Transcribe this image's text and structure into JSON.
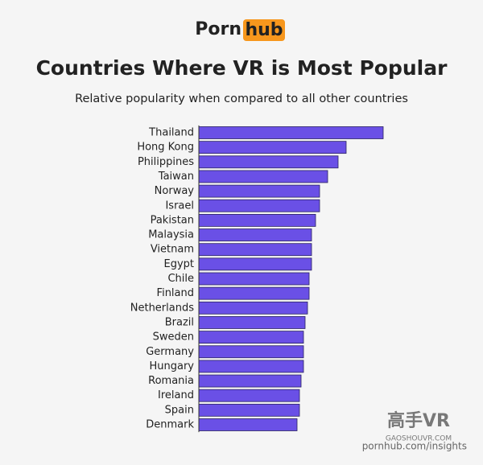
{
  "logo": {
    "left": "Porn",
    "right": "hub"
  },
  "chart_data": {
    "type": "bar",
    "orientation": "horizontal",
    "title": "Countries Where VR is Most Popular",
    "subtitle": "Relative popularity when compared to all other countries",
    "categories": [
      "Thailand",
      "Hong Kong",
      "Philippines",
      "Taiwan",
      "Norway",
      "Israel",
      "Pakistan",
      "Malaysia",
      "Vietnam",
      "Egypt",
      "Chile",
      "Finland",
      "Netherlands",
      "Brazil",
      "Sweden",
      "Germany",
      "Hungary",
      "Romania",
      "Ireland",
      "Spain",
      "Denmark"
    ],
    "values": [
      229,
      183,
      173,
      160,
      150,
      150,
      145,
      140,
      140,
      140,
      137,
      137,
      135,
      132,
      130,
      130,
      130,
      127,
      125,
      125,
      122
    ],
    "color": "#6a50e6",
    "source": "pornhub.com/insights"
  },
  "watermark": {
    "main": "高手VR",
    "sub": "GAOSHOUVR.COM"
  }
}
